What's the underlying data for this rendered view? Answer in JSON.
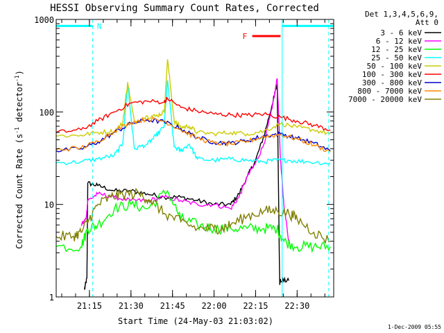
{
  "chart_data": {
    "type": "line",
    "title": "HESSI Observing Summary Count Rates, Corrected",
    "xlabel": "Start Time (24-May-03 21:03:02)",
    "ylabel": "Corrected Count Rate (s",
    "ylabel_sup1": "-1",
    "ylabel_mid": " detector",
    "ylabel_sup2": "-1",
    "ylabel_end": ")",
    "y_scale": "log",
    "ylim": [
      1,
      1000
    ],
    "y_ticks": [
      {
        "v": 1,
        "label": "1"
      },
      {
        "v": 10,
        "label": "10"
      },
      {
        "v": 100,
        "label": "100"
      },
      {
        "v": 1000,
        "label": "1000"
      }
    ],
    "xlim": [
      21.05,
      22.72
    ],
    "x_ticks": [
      {
        "v": 21.25,
        "label": "21:15"
      },
      {
        "v": 21.5,
        "label": "21:30"
      },
      {
        "v": 21.75,
        "label": "21:45"
      },
      {
        "v": 22.0,
        "label": "22:00"
      },
      {
        "v": 22.25,
        "label": "22:15"
      },
      {
        "v": 22.5,
        "label": "22:30"
      }
    ],
    "legend_title": [
      "Det 1,3,4,5,6,9,",
      "Att 0"
    ],
    "legend_placement": "right",
    "series": [
      {
        "name": "3 - 6 keV",
        "color": "#000000",
        "x": [
          21.05,
          21.22,
          21.235,
          21.24,
          21.3,
          21.4,
          21.5,
          21.6,
          21.7,
          21.8,
          21.9,
          22.0,
          22.1,
          22.15,
          22.2,
          22.25,
          22.3,
          22.35,
          22.38,
          22.395,
          22.4,
          22.45,
          22.5,
          22.55,
          22.6
        ],
        "y": [
          null,
          1.2,
          1.6,
          17,
          16,
          14,
          14,
          13,
          12,
          12,
          11,
          10,
          10,
          13,
          20,
          30,
          55,
          120,
          200,
          1.4,
          1.5,
          1.5,
          null,
          null,
          null
        ]
      },
      {
        "name": "6 - 12 keV",
        "color": "#ff00ff",
        "x": [
          21.2,
          21.23,
          21.24,
          21.3,
          21.4,
          21.5,
          21.6,
          21.7,
          21.8,
          21.9,
          22.0,
          22.1,
          22.15,
          22.2,
          22.25,
          22.3,
          22.35,
          22.38,
          22.4,
          22.42,
          22.45
        ],
        "y": [
          6,
          7,
          11,
          13,
          12,
          11,
          11,
          12,
          11,
          10,
          10,
          9,
          12,
          20,
          28,
          45,
          110,
          230,
          30,
          10,
          4
        ]
      },
      {
        "name": "12 - 25 keV",
        "color": "#00ff00",
        "x": [
          21.05,
          21.2,
          21.24,
          21.3,
          21.4,
          21.5,
          21.6,
          21.72,
          21.8,
          21.9,
          22.0,
          22.1,
          22.2,
          22.3,
          22.38,
          22.42,
          22.5,
          22.6,
          22.7
        ],
        "y": [
          3.5,
          3.5,
          5.5,
          6,
          9,
          10,
          9,
          14,
          7,
          6,
          5.5,
          5.5,
          5.5,
          5.5,
          5.5,
          4,
          3.5,
          3.5,
          3.5
        ]
      },
      {
        "name": "25 - 50 keV",
        "color": "#00ffff",
        "x": [
          21.05,
          21.2,
          21.3,
          21.4,
          21.45,
          21.48,
          21.52,
          21.6,
          21.65,
          21.7,
          21.72,
          21.76,
          21.8,
          21.85,
          21.9,
          22.0,
          22.1,
          22.2,
          22.3,
          22.38,
          22.45,
          22.55,
          22.7
        ],
        "y": [
          28,
          29,
          31,
          34,
          45,
          200,
          40,
          45,
          55,
          70,
          220,
          42,
          38,
          45,
          31,
          30,
          31,
          30,
          29,
          30,
          30,
          29,
          28
        ]
      },
      {
        "name": "50 - 100 keV",
        "color": "#cccc00",
        "x": [
          21.05,
          21.2,
          21.3,
          21.4,
          21.45,
          21.48,
          21.52,
          21.6,
          21.65,
          21.7,
          21.72,
          21.76,
          21.8,
          21.85,
          21.9,
          22.0,
          22.1,
          22.2,
          22.3,
          22.4,
          22.5,
          22.6,
          22.7
        ],
        "y": [
          55,
          56,
          60,
          62,
          75,
          210,
          78,
          90,
          90,
          100,
          370,
          80,
          68,
          70,
          60,
          58,
          60,
          58,
          62,
          75,
          68,
          64,
          58
        ]
      },
      {
        "name": "100 - 300 keV",
        "color": "#ff0000",
        "x": [
          21.05,
          21.2,
          21.3,
          21.4,
          21.5,
          21.6,
          21.7,
          21.72,
          21.8,
          21.9,
          22.0,
          22.1,
          22.2,
          22.3,
          22.4,
          22.5,
          22.6,
          22.7
        ],
        "y": [
          60,
          64,
          80,
          100,
          125,
          130,
          128,
          140,
          112,
          102,
          95,
          93,
          92,
          95,
          88,
          80,
          72,
          64
        ]
      },
      {
        "name": "300 - 800 keV",
        "color": "#0000cc",
        "x": [
          21.05,
          21.2,
          21.3,
          21.4,
          21.5,
          21.6,
          21.7,
          21.8,
          21.9,
          22.0,
          22.1,
          22.2,
          22.3,
          22.4,
          22.5,
          22.6,
          22.7
        ],
        "y": [
          38,
          40,
          47,
          60,
          75,
          82,
          78,
          66,
          53,
          47,
          46,
          49,
          55,
          58,
          52,
          46,
          38
        ]
      },
      {
        "name": "800 - 7000 keV",
        "color": "#ff8800",
        "x": [
          21.05,
          21.2,
          21.3,
          21.4,
          21.5,
          21.6,
          21.7,
          21.8,
          21.9,
          22.0,
          22.1,
          22.2,
          22.3,
          22.4,
          22.5,
          22.6,
          22.7
        ],
        "y": [
          39,
          41,
          48,
          62,
          77,
          84,
          80,
          64,
          52,
          46,
          45,
          48,
          54,
          57,
          51,
          44,
          37
        ]
      },
      {
        "name": "7000 - 20000 keV",
        "color": "#808000",
        "x": [
          21.05,
          21.15,
          21.2,
          21.25,
          21.3,
          21.38,
          21.45,
          21.55,
          21.62,
          21.7,
          21.8,
          21.9,
          22.0,
          22.05,
          22.1,
          22.2,
          22.3,
          22.38,
          22.45,
          22.5,
          22.6,
          22.7
        ],
        "y": [
          4.5,
          4.5,
          5,
          7,
          10,
          12,
          13,
          13,
          11,
          8,
          6.5,
          5.5,
          5.5,
          5.5,
          6,
          7.5,
          8.5,
          8.5,
          8,
          7,
          5,
          4
        ]
      }
    ],
    "night_bar": {
      "label": "N",
      "x": [
        21.05,
        21.27
      ],
      "y": 850,
      "color": "#00ffff"
    },
    "night_bar_2": {
      "x": [
        22.41,
        22.72
      ],
      "y": 850,
      "color": "#00ffff"
    },
    "flare_bar": {
      "label": "F",
      "x": [
        22.23,
        22.4
      ],
      "y": 660,
      "color": "#ff0000"
    },
    "dashed_lines": [
      {
        "x": 21.27,
        "color": "#00ffff"
      },
      {
        "x": 22.69,
        "color": "#00ffff"
      }
    ],
    "solid_line": {
      "x": 22.41,
      "color": "#00ffff"
    },
    "timestamp": "1-Dec-2009 05:55"
  }
}
